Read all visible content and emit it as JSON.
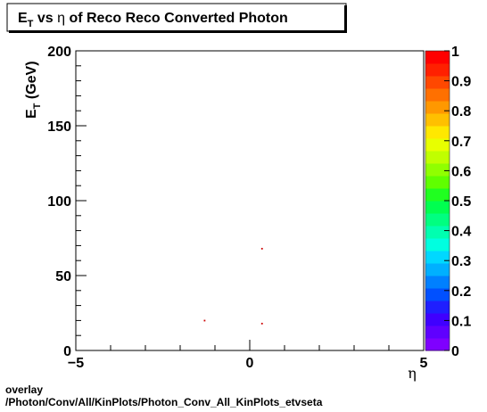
{
  "footer": {
    "line1": "overlay",
    "line2": "/Photon/Conv/All/KinPlots/Photon_Conv_All_KinPlots_etvseta"
  },
  "chart_data": {
    "type": "scatter",
    "title": "E_T vs η of Reco Reco Converted Photon",
    "title_parts": {
      "e": "E",
      "t": "T",
      "vs": " vs ",
      "eta": "η",
      "rest": " of Reco Reco Converted Photon"
    },
    "xlabel": "η",
    "ylabel_parts": {
      "e": "E",
      "t": "T",
      "unit": " (GeV)"
    },
    "xlim": [
      -5,
      5
    ],
    "ylim": [
      0,
      200
    ],
    "x_ticks": [
      {
        "value": -5,
        "label": "−5"
      },
      {
        "value": 0,
        "label": "0"
      },
      {
        "value": 5,
        "label": "5"
      }
    ],
    "y_ticks": [
      {
        "value": 0,
        "label": "0"
      },
      {
        "value": 50,
        "label": "50"
      },
      {
        "value": 100,
        "label": "100"
      },
      {
        "value": 150,
        "label": "150"
      },
      {
        "value": 200,
        "label": "200"
      }
    ],
    "grid": false,
    "points": [
      {
        "x": -1.3,
        "y": 20
      },
      {
        "x": 0.35,
        "y": 18
      },
      {
        "x": 0.35,
        "y": 68
      }
    ],
    "point_color": "#cc0000",
    "colorbar": {
      "min": 0,
      "max": 1,
      "labels": [
        "0",
        "0.1",
        "0.2",
        "0.3",
        "0.4",
        "0.5",
        "0.6",
        "0.7",
        "0.8",
        "0.9",
        "1"
      ],
      "colors": [
        "#7f00ff",
        "#5f00ff",
        "#3f00ff",
        "#1f1fff",
        "#0050ff",
        "#0080ff",
        "#00b0ff",
        "#00d8ff",
        "#00ffe0",
        "#00ffb0",
        "#00ff80",
        "#00ff50",
        "#20ff20",
        "#60ff00",
        "#90ff00",
        "#c0ff00",
        "#e8ff00",
        "#ffe800",
        "#ffc000",
        "#ff9800",
        "#ff7000",
        "#ff4800",
        "#ff2000",
        "#ff0000"
      ]
    }
  }
}
